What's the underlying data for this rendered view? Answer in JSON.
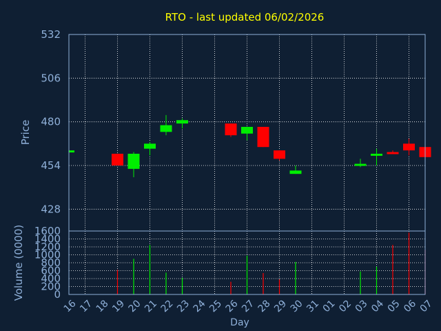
{
  "colors": {
    "background": "#0f1f33",
    "axis_text": "#8fb0d9",
    "title": "#ffff00",
    "grid": "#ffffff",
    "up": "#00ee00",
    "down": "#ff0000"
  },
  "chart_data": {
    "type": "candlestick",
    "title": "RTO - last updated 06/02/2026",
    "xlabel": "Day",
    "grid": true,
    "x_ticks": [
      "16",
      "17",
      "18",
      "19",
      "20",
      "21",
      "22",
      "23",
      "24",
      "25",
      "26",
      "27",
      "28",
      "29",
      "30",
      "31",
      "01",
      "02",
      "03",
      "04",
      "05",
      "06",
      "07"
    ],
    "price": {
      "ylabel": "Price",
      "ylim": [
        415,
        532
      ],
      "y_ticks": [
        428,
        454,
        480,
        506,
        532
      ],
      "candles": [
        {
          "day": 0,
          "open": 462.0,
          "close": 463.0,
          "high": 463.0,
          "low": 462.0
        },
        {
          "day": 3,
          "open": 461.0,
          "close": 454.0,
          "high": 461.0,
          "low": 454.0
        },
        {
          "day": 4,
          "open": 452.0,
          "close": 461.0,
          "high": 462.0,
          "low": 447.0
        },
        {
          "day": 5,
          "open": 464.0,
          "close": 467.0,
          "high": 468.0,
          "low": 460.0
        },
        {
          "day": 6,
          "open": 474.0,
          "close": 478.0,
          "high": 484.0,
          "low": 472.0
        },
        {
          "day": 7,
          "open": 479.0,
          "close": 481.0,
          "high": 482.0,
          "low": 476.0
        },
        {
          "day": 10,
          "open": 479.0,
          "close": 472.0,
          "high": 479.0,
          "low": 471.0
        },
        {
          "day": 11,
          "open": 473.0,
          "close": 477.0,
          "high": 477.0,
          "low": 469.0
        },
        {
          "day": 12,
          "open": 477.0,
          "close": 465.0,
          "high": 477.0,
          "low": 465.0
        },
        {
          "day": 13,
          "open": 463.0,
          "close": 458.0,
          "high": 463.0,
          "low": 457.0
        },
        {
          "day": 14,
          "open": 449.0,
          "close": 451.0,
          "high": 454.0,
          "low": 449.0
        },
        {
          "day": 18,
          "open": 454.0,
          "close": 455.0,
          "high": 458.0,
          "low": 453.0
        },
        {
          "day": 19,
          "open": 460.0,
          "close": 461.0,
          "high": 464.0,
          "low": 454.0
        },
        {
          "day": 20,
          "open": 462.0,
          "close": 461.0,
          "high": 463.0,
          "low": 461.0
        },
        {
          "day": 21,
          "open": 467.0,
          "close": 463.0,
          "high": 470.0,
          "low": 460.0
        },
        {
          "day": 22,
          "open": 465.0,
          "close": 459.0,
          "high": 466.0,
          "low": 458.0
        }
      ]
    },
    "volume": {
      "ylabel": "Volume (0000)",
      "ylim": [
        0,
        1600
      ],
      "y_ticks": [
        0,
        200,
        400,
        600,
        800,
        1000,
        1200,
        1400,
        1600
      ],
      "bars": [
        {
          "day": 3,
          "value": 620,
          "dir": "down"
        },
        {
          "day": 4,
          "value": 900,
          "dir": "up"
        },
        {
          "day": 5,
          "value": 1250,
          "dir": "up"
        },
        {
          "day": 6,
          "value": 550,
          "dir": "up"
        },
        {
          "day": 7,
          "value": 420,
          "dir": "up"
        },
        {
          "day": 10,
          "value": 320,
          "dir": "down"
        },
        {
          "day": 11,
          "value": 980,
          "dir": "up"
        },
        {
          "day": 12,
          "value": 540,
          "dir": "down"
        },
        {
          "day": 13,
          "value": 380,
          "dir": "down"
        },
        {
          "day": 14,
          "value": 820,
          "dir": "up"
        },
        {
          "day": 18,
          "value": 580,
          "dir": "up"
        },
        {
          "day": 19,
          "value": 700,
          "dir": "up"
        },
        {
          "day": 20,
          "value": 1250,
          "dir": "down"
        },
        {
          "day": 21,
          "value": 1560,
          "dir": "down"
        },
        {
          "day": 22,
          "value": 1130,
          "dir": "down"
        }
      ]
    }
  }
}
